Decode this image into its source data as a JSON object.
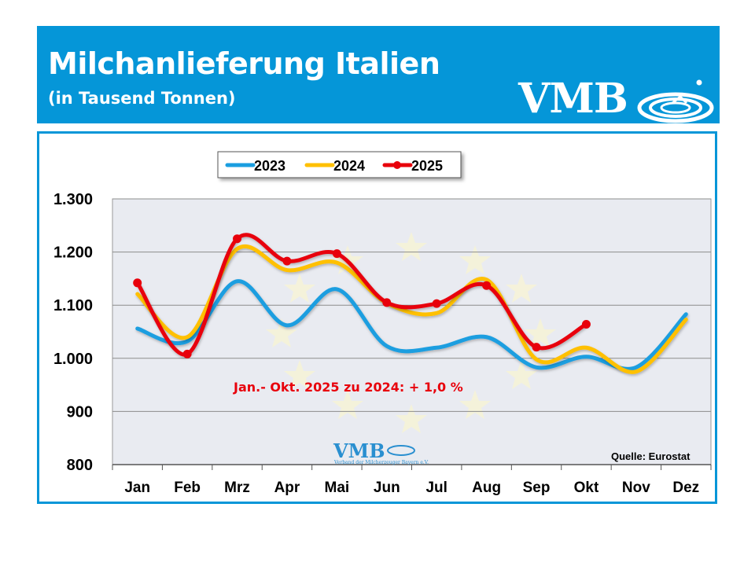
{
  "header": {
    "title": "Milchanlieferung Italien",
    "subtitle": "(in Tausend Tonnen)",
    "logo_text": "VMB",
    "background_color": "#0596d8"
  },
  "watermark": {
    "logo_text": "VMB",
    "tagline": "Verband der Milcherzeuger Bayern e.V."
  },
  "chart_data": {
    "type": "line",
    "title": "",
    "xlabel": "",
    "ylabel": "",
    "categories": [
      "Jan",
      "Feb",
      "Mrz",
      "Apr",
      "Mai",
      "Jun",
      "Jul",
      "Aug",
      "Sep",
      "Okt",
      "Nov",
      "Dez"
    ],
    "ylim": [
      800,
      1300
    ],
    "yticks": [
      800,
      900,
      1000,
      1100,
      1200,
      1300
    ],
    "ytick_labels": [
      "800",
      "900",
      "1.000",
      "1.100",
      "1.200",
      "1.300"
    ],
    "grid": true,
    "legend_position": "top-left",
    "series": [
      {
        "name": "2023",
        "color": "#1a9ee0",
        "markers": false,
        "values": [
          1056,
          1032,
          1145,
          1062,
          1130,
          1023,
          1020,
          1040,
          983,
          1003,
          983,
          1083
        ]
      },
      {
        "name": "2024",
        "color": "#ffc000",
        "markers": false,
        "values": [
          1121,
          1040,
          1206,
          1166,
          1180,
          1104,
          1085,
          1148,
          998,
          1020,
          975,
          1073
        ]
      },
      {
        "name": "2025",
        "color": "#e8000b",
        "markers": true,
        "values": [
          1142,
          1008,
          1225,
          1183,
          1197,
          1105,
          1103,
          1137,
          1021,
          1064,
          null,
          null
        ]
      }
    ],
    "annotation": "Jan.- Okt. 2025 zu 2024: + 1,0 %",
    "source": "Quelle: Eurostat"
  }
}
